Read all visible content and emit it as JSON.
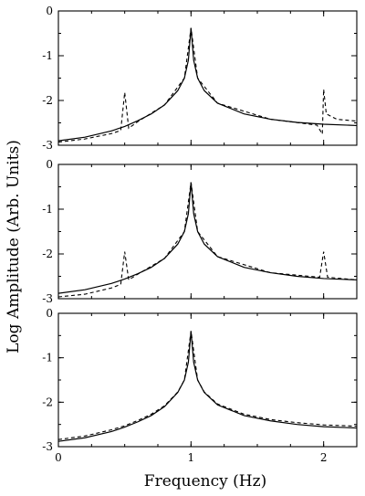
{
  "chart_data": {
    "type": "line",
    "xlabel": "Frequency (Hz)",
    "ylabel": "Log Amplitude (Arb. Units)",
    "xlim": [
      0,
      2.25
    ],
    "ylim": [
      -3,
      0
    ],
    "x_ticks": [
      "0",
      "1",
      "2"
    ],
    "y_ticks": [
      "0",
      "-1",
      "-2",
      "-3"
    ],
    "grid": false,
    "panels": [
      {
        "series": [
          {
            "style": "solid",
            "x": [
              0,
              0.2,
              0.4,
              0.5,
              0.6,
              0.7,
              0.8,
              0.9,
              0.95,
              0.98,
              1.0,
              1.02,
              1.05,
              1.1,
              1.2,
              1.4,
              1.6,
              1.8,
              2.0,
              2.25
            ],
            "y": [
              -2.9,
              -2.82,
              -2.68,
              -2.58,
              -2.45,
              -2.3,
              -2.1,
              -1.78,
              -1.5,
              -1.1,
              -0.38,
              -1.1,
              -1.5,
              -1.78,
              -2.06,
              -2.3,
              -2.42,
              -2.49,
              -2.53,
              -2.56
            ]
          },
          {
            "style": "dashed",
            "x": [
              0,
              0.2,
              0.4,
              0.47,
              0.5,
              0.53,
              0.6,
              0.8,
              0.95,
              1.0,
              1.05,
              1.2,
              1.6,
              1.95,
              1.99,
              2.0,
              2.02,
              2.1,
              2.25
            ],
            "y": [
              -2.93,
              -2.86,
              -2.74,
              -2.67,
              -1.82,
              -2.62,
              -2.47,
              -2.1,
              -1.5,
              -0.38,
              -1.5,
              -2.06,
              -2.42,
              -2.55,
              -2.75,
              -1.75,
              -2.3,
              -2.42,
              -2.46
            ]
          }
        ]
      },
      {
        "series": [
          {
            "style": "solid",
            "x": [
              0,
              0.2,
              0.4,
              0.5,
              0.6,
              0.7,
              0.8,
              0.9,
              0.95,
              0.98,
              1.0,
              1.02,
              1.05,
              1.1,
              1.2,
              1.4,
              1.6,
              1.8,
              2.0,
              2.25
            ],
            "y": [
              -2.88,
              -2.8,
              -2.66,
              -2.56,
              -2.44,
              -2.3,
              -2.1,
              -1.78,
              -1.5,
              -1.1,
              -0.4,
              -1.1,
              -1.5,
              -1.78,
              -2.06,
              -2.3,
              -2.42,
              -2.5,
              -2.55,
              -2.58
            ]
          },
          {
            "style": "dashed",
            "x": [
              0,
              0.2,
              0.4,
              0.47,
              0.5,
              0.53,
              0.6,
              0.8,
              0.95,
              1.0,
              1.05,
              1.2,
              1.6,
              1.97,
              2.0,
              2.03,
              2.25
            ],
            "y": [
              -2.96,
              -2.9,
              -2.76,
              -2.68,
              -1.95,
              -2.58,
              -2.45,
              -2.1,
              -1.5,
              -0.4,
              -1.5,
              -2.06,
              -2.42,
              -2.52,
              -1.95,
              -2.52,
              -2.58
            ]
          }
        ]
      },
      {
        "series": [
          {
            "style": "solid",
            "x": [
              0,
              0.2,
              0.4,
              0.5,
              0.6,
              0.7,
              0.8,
              0.9,
              0.95,
              0.98,
              1.0,
              1.02,
              1.05,
              1.1,
              1.2,
              1.4,
              1.6,
              1.8,
              2.0,
              2.25
            ],
            "y": [
              -2.88,
              -2.8,
              -2.66,
              -2.56,
              -2.44,
              -2.3,
              -2.1,
              -1.78,
              -1.5,
              -1.1,
              -0.4,
              -1.1,
              -1.5,
              -1.78,
              -2.06,
              -2.3,
              -2.42,
              -2.5,
              -2.55,
              -2.58
            ]
          },
          {
            "style": "dashed",
            "x": [
              0,
              0.2,
              0.4,
              0.5,
              0.6,
              0.7,
              0.8,
              0.9,
              0.95,
              1.0,
              1.05,
              1.1,
              1.2,
              1.4,
              1.6,
              1.8,
              2.0,
              2.25
            ],
            "y": [
              -2.84,
              -2.76,
              -2.62,
              -2.53,
              -2.41,
              -2.27,
              -2.08,
              -1.77,
              -1.5,
              -0.4,
              -1.5,
              -1.77,
              -2.04,
              -2.27,
              -2.39,
              -2.46,
              -2.51,
              -2.54
            ]
          }
        ]
      }
    ]
  }
}
